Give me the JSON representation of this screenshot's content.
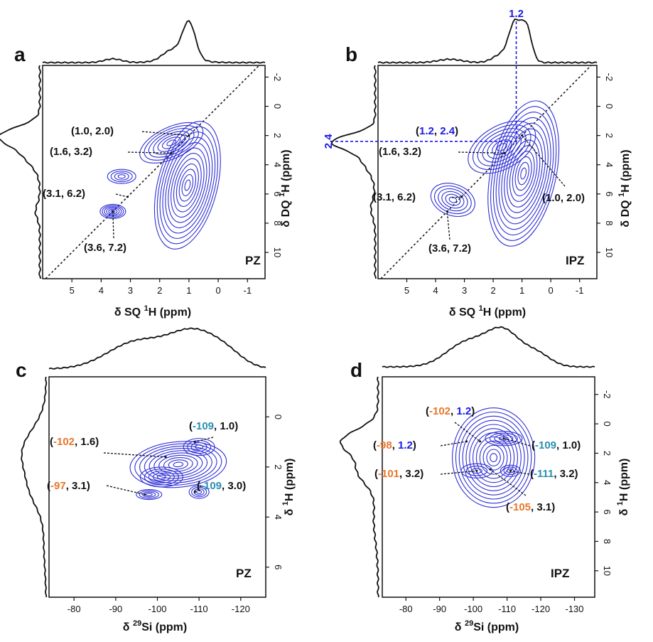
{
  "colors": {
    "contour": "#2f2fd6",
    "highlight": "#1a1ae6",
    "orange": "#e8762b",
    "teal": "#2a8fb0",
    "text": "#111111"
  },
  "chart_data": [
    {
      "panel": "a",
      "type": "heatmap",
      "sample": "PZ",
      "xlabel": {
        "pre": "δ SQ ",
        "sup": "1",
        "post": "H (ppm)"
      },
      "ylabel": {
        "pre": "δ DQ ",
        "sup": "1",
        "post": "H (ppm)"
      },
      "xlim": [
        6,
        -1.6
      ],
      "ylim": [
        -2.8,
        11.8
      ],
      "xticks": [
        "5",
        "4",
        "3",
        "2",
        "1",
        "0",
        "-1"
      ],
      "yticks": [
        "-2",
        "0",
        "2",
        "4",
        "6",
        "8",
        "10"
      ],
      "diagonal": true,
      "peaks": [
        {
          "x": 1.0,
          "y": 2.0,
          "label": [
            {
              "t": "(1.0, 2.0)",
              "c": "text"
            }
          ]
        },
        {
          "x": 1.6,
          "y": 3.2,
          "label": [
            {
              "t": "(1.6, 3.2)",
              "c": "text"
            }
          ]
        },
        {
          "x": 3.1,
          "y": 6.2,
          "label": [
            {
              "t": "(3.1, 6.2)",
              "c": "text"
            }
          ]
        },
        {
          "x": 3.6,
          "y": 7.2,
          "label": [
            {
              "t": "(3.6, 7.2)",
              "c": "text"
            }
          ]
        }
      ]
    },
    {
      "panel": "b",
      "type": "heatmap",
      "sample": "IPZ",
      "xlabel": {
        "pre": "δ SQ ",
        "sup": "1",
        "post": "H (ppm)"
      },
      "ylabel": {
        "pre": "δ DQ ",
        "sup": "1",
        "post": "H (ppm)"
      },
      "xlim": [
        6,
        -1.6
      ],
      "ylim": [
        -2.8,
        11.8
      ],
      "xticks": [
        "5",
        "4",
        "3",
        "2",
        "1",
        "0",
        "-1"
      ],
      "yticks": [
        "-2",
        "0",
        "2",
        "4",
        "6",
        "8",
        "10"
      ],
      "diagonal": true,
      "highlight": {
        "x": "1.2",
        "y": "2.4",
        "label": [
          {
            "t": "(",
            "c": "text"
          },
          {
            "t": "1.2",
            "c": "highlight"
          },
          {
            "t": ", ",
            "c": "text"
          },
          {
            "t": "2.4",
            "c": "highlight"
          },
          {
            "t": ")",
            "c": "text"
          }
        ]
      },
      "peaks": [
        {
          "x": 1.6,
          "y": 3.2,
          "label": [
            {
              "t": "(1.6, 3.2)",
              "c": "text"
            }
          ]
        },
        {
          "x": 1.0,
          "y": 2.0,
          "label": [
            {
              "t": "(1.0, 2.0)",
              "c": "text"
            }
          ]
        },
        {
          "x": 3.1,
          "y": 6.2,
          "label": [
            {
              "t": "(3.1, 6.2)",
              "c": "text"
            }
          ]
        },
        {
          "x": 3.6,
          "y": 7.2,
          "label": [
            {
              "t": "(3.6, 7.2)",
              "c": "text"
            }
          ]
        }
      ]
    },
    {
      "panel": "c",
      "type": "heatmap",
      "sample": "PZ",
      "xlabel": {
        "pre": "δ ",
        "sup": "29",
        "post": "Si (ppm)"
      },
      "ylabel": {
        "pre": "δ ",
        "sup": "1",
        "post": "H (ppm)"
      },
      "xlim": [
        -74,
        -126
      ],
      "ylim": [
        -1.6,
        7.2
      ],
      "xticks": [
        "-80",
        "-90",
        "-100",
        "-110",
        "-120"
      ],
      "yticks": [
        "0",
        "2",
        "4",
        "6"
      ],
      "peaks": [
        {
          "x": -109,
          "y": 1.0,
          "label": [
            {
              "t": "(",
              "c": "text"
            },
            {
              "t": "-109",
              "c": "teal"
            },
            {
              "t": ", 1.0)",
              "c": "text"
            }
          ]
        },
        {
          "x": -102,
          "y": 1.6,
          "label": [
            {
              "t": "(",
              "c": "text"
            },
            {
              "t": "-102",
              "c": "orange"
            },
            {
              "t": ", 1.6)",
              "c": "text"
            }
          ]
        },
        {
          "x": -97,
          "y": 3.1,
          "label": [
            {
              "t": "(",
              "c": "text"
            },
            {
              "t": "-97",
              "c": "orange"
            },
            {
              "t": ", 3.1)",
              "c": "text"
            }
          ]
        },
        {
          "x": -109,
          "y": 3.0,
          "label": [
            {
              "t": "(",
              "c": "text"
            },
            {
              "t": "-109",
              "c": "teal"
            },
            {
              "t": ", 3.0)",
              "c": "text"
            }
          ]
        }
      ]
    },
    {
      "panel": "d",
      "type": "heatmap",
      "sample": "IPZ",
      "xlabel": {
        "pre": "δ ",
        "sup": "29",
        "post": "Si (ppm)"
      },
      "ylabel": {
        "pre": "δ ",
        "sup": "1",
        "post": "H (ppm)"
      },
      "xlim": [
        -73,
        -136
      ],
      "ylim": [
        -3.2,
        11.8
      ],
      "xticks": [
        "-80",
        "-90",
        "-100",
        "-110",
        "-120",
        "-130"
      ],
      "yticks": [
        "-2",
        "0",
        "2",
        "4",
        "6",
        "8",
        "10"
      ],
      "peaks": [
        {
          "x": -102,
          "y": 1.2,
          "label": [
            {
              "t": "(",
              "c": "text"
            },
            {
              "t": "-102",
              "c": "orange"
            },
            {
              "t": ", ",
              "c": "text"
            },
            {
              "t": "1.2",
              "c": "highlight"
            },
            {
              "t": ")",
              "c": "text"
            }
          ]
        },
        {
          "x": -98,
          "y": 1.2,
          "label": [
            {
              "t": "(",
              "c": "text"
            },
            {
              "t": "-98",
              "c": "orange"
            },
            {
              "t": ", ",
              "c": "text"
            },
            {
              "t": "1.2",
              "c": "highlight"
            },
            {
              "t": ")",
              "c": "text"
            }
          ]
        },
        {
          "x": -109,
          "y": 1.0,
          "label": [
            {
              "t": "(",
              "c": "text"
            },
            {
              "t": "-109",
              "c": "teal"
            },
            {
              "t": ", 1.0)",
              "c": "text"
            }
          ]
        },
        {
          "x": -101,
          "y": 3.2,
          "label": [
            {
              "t": "(",
              "c": "text"
            },
            {
              "t": "-101",
              "c": "orange"
            },
            {
              "t": ", 3.2)",
              "c": "text"
            }
          ]
        },
        {
          "x": -111,
          "y": 3.2,
          "label": [
            {
              "t": "(",
              "c": "text"
            },
            {
              "t": "-111",
              "c": "teal"
            },
            {
              "t": ", 3.2)",
              "c": "text"
            }
          ]
        },
        {
          "x": -105,
          "y": 3.1,
          "label": [
            {
              "t": "(",
              "c": "text"
            },
            {
              "t": "-105",
              "c": "orange"
            },
            {
              "t": ", 3.1)",
              "c": "text"
            }
          ]
        }
      ]
    }
  ]
}
